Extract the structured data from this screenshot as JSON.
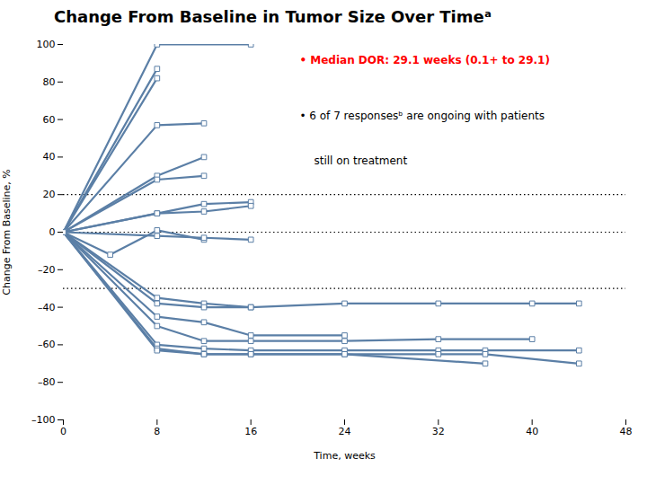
{
  "chart_data": {
    "type": "line",
    "title": "Change From Baseline in Tumor Size Over Timeᵃ",
    "xlabel": "Time, weeks",
    "ylabel": "Change From Baseline, %",
    "xlim": [
      0,
      48
    ],
    "ylim": [
      -100,
      100
    ],
    "xticks": [
      0,
      8,
      16,
      24,
      32,
      40,
      48
    ],
    "yticks": [
      {
        "value": -100,
        "label": "–100"
      },
      {
        "value": -80,
        "label": "–80"
      },
      {
        "value": -60,
        "label": "–60"
      },
      {
        "value": -40,
        "label": "–40"
      },
      {
        "value": -20,
        "label": "–20"
      },
      0,
      20,
      40,
      60,
      80,
      100
    ],
    "grid": false,
    "color": "#5b7fa6",
    "marker": "square",
    "reference_lines": [
      20,
      0,
      -30
    ],
    "annotations": [
      {
        "lines": [
          "• Median DOR: 29.1 weeks (0.1+ to 29.1)"
        ],
        "color": "red"
      },
      {
        "lines": [
          "• 6 of 7 responsesᵇ are ongoing with patients",
          "still on treatment"
        ],
        "color": "black"
      }
    ],
    "series": [
      {
        "x": [
          0,
          8,
          16
        ],
        "values": [
          0,
          100,
          100
        ]
      },
      {
        "x": [
          0,
          8
        ],
        "values": [
          0,
          87
        ]
      },
      {
        "x": [
          0,
          8
        ],
        "values": [
          0,
          82
        ]
      },
      {
        "x": [
          0,
          8,
          12
        ],
        "values": [
          0,
          57,
          58
        ]
      },
      {
        "x": [
          0,
          8,
          12
        ],
        "values": [
          0,
          30,
          40
        ]
      },
      {
        "x": [
          0,
          8,
          12
        ],
        "values": [
          0,
          28,
          30
        ]
      },
      {
        "x": [
          0,
          8,
          12,
          16
        ],
        "values": [
          0,
          10,
          15,
          16
        ]
      },
      {
        "x": [
          0,
          8,
          12,
          16
        ],
        "values": [
          0,
          10,
          11,
          14
        ]
      },
      {
        "x": [
          0,
          4,
          8,
          12
        ],
        "values": [
          0,
          -12,
          1,
          -4
        ]
      },
      {
        "x": [
          0,
          8,
          12,
          16
        ],
        "values": [
          0,
          -2,
          -3,
          -4
        ]
      },
      {
        "x": [
          0,
          8,
          12,
          16
        ],
        "values": [
          0,
          -35,
          -38,
          -40
        ]
      },
      {
        "x": [
          0,
          8,
          12,
          16,
          24,
          32,
          40,
          44
        ],
        "values": [
          0,
          -38,
          -40,
          -40,
          -38,
          -38,
          -38,
          -38
        ]
      },
      {
        "x": [
          0,
          8,
          12,
          16,
          24
        ],
        "values": [
          0,
          -45,
          -48,
          -55,
          -55
        ]
      },
      {
        "x": [
          0,
          8,
          12,
          16,
          24,
          32,
          40
        ],
        "values": [
          0,
          -50,
          -58,
          -58,
          -58,
          -57,
          -57
        ]
      },
      {
        "x": [
          0,
          8,
          12,
          16,
          24,
          32,
          36,
          44
        ],
        "values": [
          0,
          -60,
          -62,
          -63,
          -63,
          -63,
          -63,
          -63
        ]
      },
      {
        "x": [
          0,
          8,
          12,
          16,
          24,
          36
        ],
        "values": [
          0,
          -62,
          -65,
          -65,
          -65,
          -70
        ]
      },
      {
        "x": [
          0,
          8,
          12,
          16,
          24,
          32,
          36,
          44
        ],
        "values": [
          0,
          -63,
          -65,
          -65,
          -65,
          -65,
          -65,
          -70
        ]
      }
    ]
  }
}
